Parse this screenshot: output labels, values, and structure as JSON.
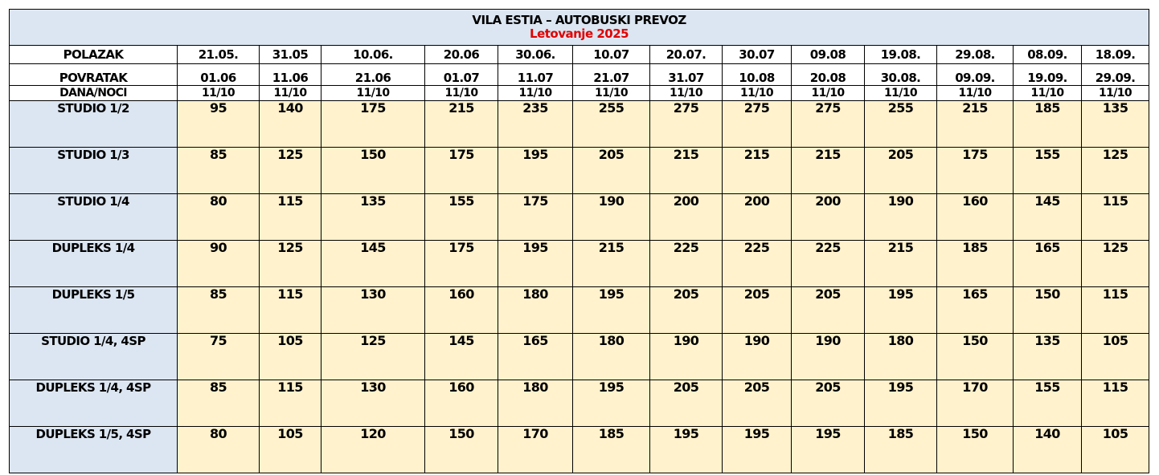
{
  "title": "VILA ESTIA – AUTOBUSKI PREVOZ",
  "subtitle": "Letovanje 2025",
  "colors": {
    "header_bg": "#dce6f2",
    "price_bg": "#fff2cc",
    "subtitle_color": "#e00000",
    "border": "#000000"
  },
  "departure": {
    "label": "POLAZAK",
    "values": [
      "21.05.",
      "31.05",
      "10.06.",
      "20.06",
      "30.06.",
      "10.07",
      "20.07.",
      "30.07",
      "09.08",
      "19.08.",
      "29.08.",
      "08.09.",
      "18.09."
    ]
  },
  "return": {
    "label": "POVRATAK",
    "values": [
      "01.06",
      "11.06",
      "21.06",
      "01.07",
      "11.07",
      "21.07",
      "31.07",
      "10.08",
      "20.08",
      "30.08.",
      "09.09.",
      "19.09.",
      "29.09."
    ]
  },
  "nights": {
    "label": "DANA/NOCI",
    "values": [
      "11/10",
      "11/10",
      "11/10",
      "11/10",
      "11/10",
      "11/10",
      "11/10",
      "11/10",
      "11/10",
      "11/10",
      "11/10",
      "11/10",
      "11/10"
    ]
  },
  "rooms": [
    {
      "name": "STUDIO 1/2",
      "prices": [
        "95",
        "140",
        "175",
        "215",
        "235",
        "255",
        "275",
        "275",
        "275",
        "255",
        "215",
        "185",
        "135"
      ]
    },
    {
      "name": "STUDIO 1/3",
      "prices": [
        "85",
        "125",
        "150",
        "175",
        "195",
        "205",
        "215",
        "215",
        "215",
        "205",
        "175",
        "155",
        "125"
      ]
    },
    {
      "name": "STUDIO 1/4",
      "prices": [
        "80",
        "115",
        "135",
        "155",
        "175",
        "190",
        "200",
        "200",
        "200",
        "190",
        "160",
        "145",
        "115"
      ]
    },
    {
      "name": "DUPLEKS 1/4",
      "prices": [
        "90",
        "125",
        "145",
        "175",
        "195",
        "215",
        "225",
        "225",
        "225",
        "215",
        "185",
        "165",
        "125"
      ]
    },
    {
      "name": "DUPLEKS 1/5",
      "prices": [
        "85",
        "115",
        "130",
        "160",
        "180",
        "195",
        "205",
        "205",
        "205",
        "195",
        "165",
        "150",
        "115"
      ]
    },
    {
      "name": "STUDIO 1/4, 4SP",
      "prices": [
        "75",
        "105",
        "125",
        "145",
        "165",
        "180",
        "190",
        "190",
        "190",
        "180",
        "150",
        "135",
        "105"
      ]
    },
    {
      "name": "DUPLEKS 1/4, 4SP",
      "prices": [
        "85",
        "115",
        "130",
        "160",
        "180",
        "195",
        "205",
        "205",
        "205",
        "195",
        "170",
        "155",
        "115"
      ]
    },
    {
      "name": "DUPLEKS 1/5, 4SP",
      "prices": [
        "80",
        "105",
        "120",
        "150",
        "170",
        "185",
        "195",
        "195",
        "195",
        "185",
        "150",
        "140",
        "105"
      ]
    }
  ]
}
